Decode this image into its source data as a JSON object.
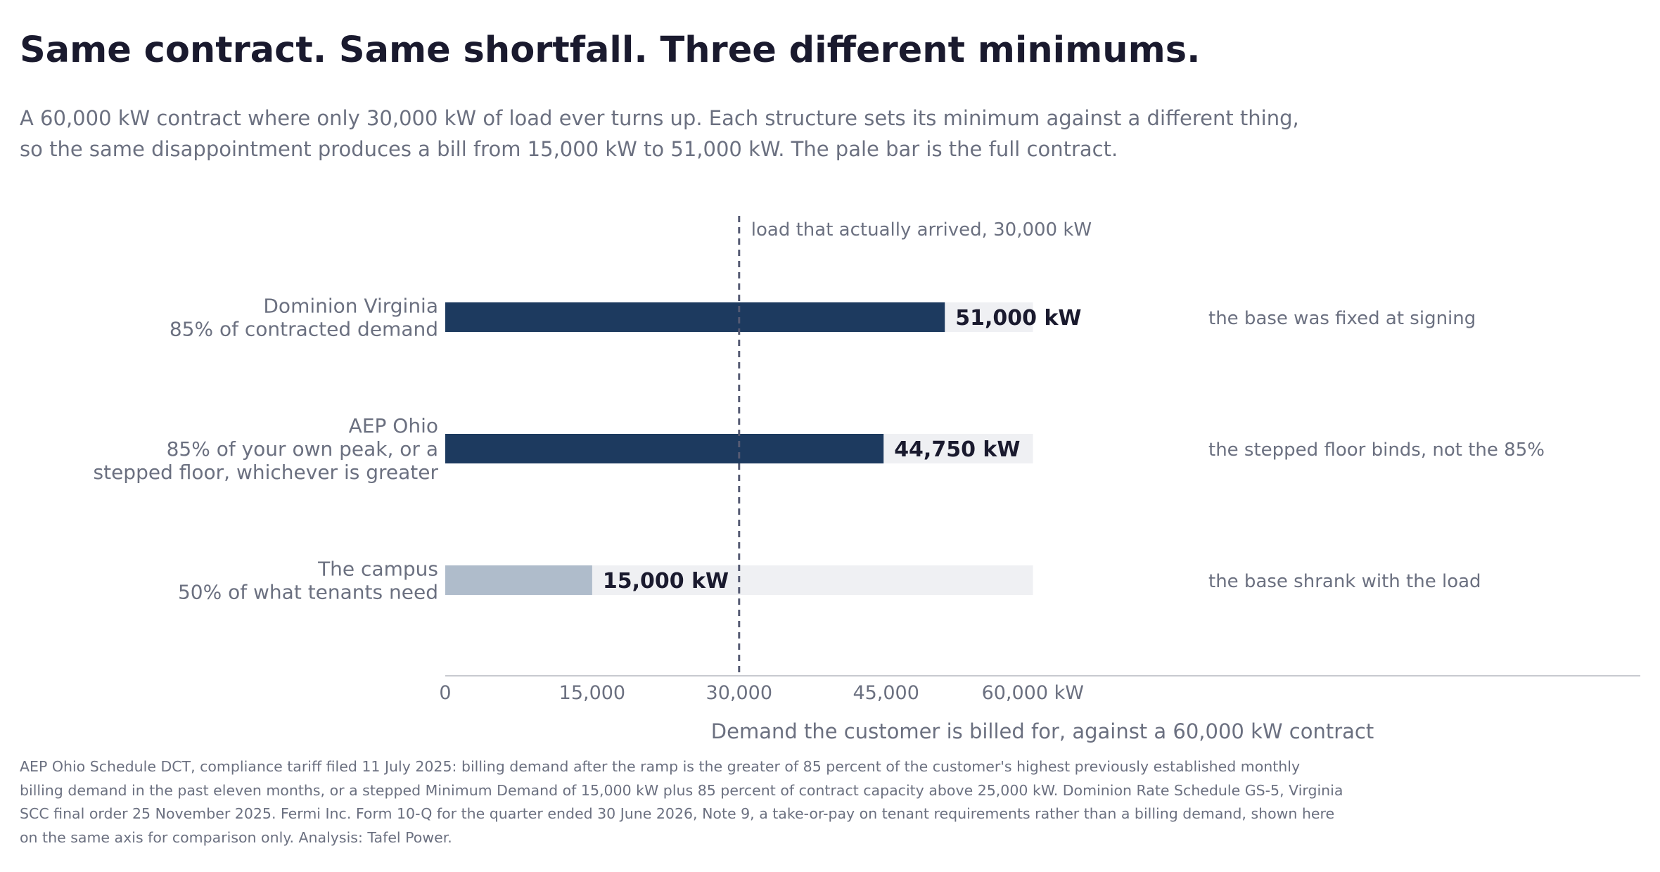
{
  "title": "Same contract. Same shortfall. Three different minimums.",
  "subtitle_lines": [
    "A 60,000 kW contract where only 30,000 kW of load ever turns up. Each structure sets its minimum against a different thing,",
    "so the same disappointment produces a bill from 15,000 kW to 51,000 kW. The pale bar is the full contract."
  ],
  "footnote_lines": [
    "AEP Ohio Schedule DCT, compliance tariff filed 11 July 2025: billing demand after the ramp is the greater of 85 percent of the customer's highest previously established monthly",
    "billing demand in the past eleven months, or a stepped Minimum Demand of 15,000 kW plus 85 percent of contract capacity above 25,000 kW. Dominion Rate Schedule GS-5, Virginia",
    "SCC final order 25 November 2025. Fermi Inc. Form 10-Q for the quarter ended 30 June 2026, Note 9, a take-or-pay on tenant requirements rather than a billing demand, shown here",
    "on the same axis for comparison only. Analysis: Tafel Power."
  ],
  "colors": {
    "bar_dark": "#1d3a5f",
    "bar_light": "#afbccb",
    "contract_bar": "#eff0f3",
    "reference_line": "#555a73",
    "value_text": "#1a1a2e",
    "muted_text": "#6b7080",
    "axis": "#c8cad0"
  },
  "chart_data": {
    "type": "bar",
    "orientation": "horizontal",
    "contract_value": 60000,
    "xlim": [
      0,
      122000
    ],
    "xticks": [
      0,
      15000,
      30000,
      45000,
      60000
    ],
    "xtick_labels": [
      "0",
      "15,000",
      "30,000",
      "45,000",
      "60,000 kW"
    ],
    "xlabel": "Demand the customer is billed for, against a 60,000 kW contract",
    "grid": false,
    "reference_line": {
      "value": 30000,
      "label": "load that actually arrived, 30,000 kW"
    },
    "categories": [
      {
        "label_lines": [
          "Dominion Virginia",
          "85% of contracted demand"
        ],
        "value": 51000,
        "value_label": "51,000 kW",
        "note": "the base was fixed at signing",
        "style": "dark"
      },
      {
        "label_lines": [
          "AEP Ohio",
          "85% of your own peak, or a",
          "stepped floor, whichever is greater"
        ],
        "value": 44750,
        "value_label": "44,750 kW",
        "note": "the stepped floor binds, not the 85%",
        "style": "dark"
      },
      {
        "label_lines": [
          "The campus",
          "50% of what tenants need"
        ],
        "value": 15000,
        "value_label": "15,000 kW",
        "note": "the base shrank with the load",
        "style": "light"
      }
    ]
  }
}
